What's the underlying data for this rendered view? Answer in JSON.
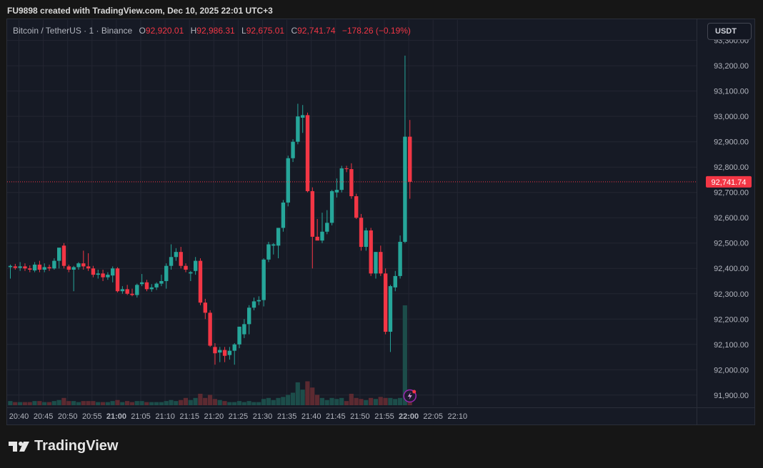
{
  "header": {
    "created_by": "FU9898 created with TradingView.com, Dec 10, 2025 22:01 UTC+3"
  },
  "legend": {
    "symbol": "Bitcoin / TetherUS · 1 · Binance",
    "open_label": "O",
    "open": "92,920.01",
    "high_label": "H",
    "high": "92,986.31",
    "low_label": "L",
    "low": "92,675.01",
    "close_label": "C",
    "close": "92,741.74",
    "change": "−178.26 (−0.19%)"
  },
  "currency_button": "USDT",
  "brand": {
    "name": "TradingView",
    "icon": "tradingview-logo-icon"
  },
  "colors": {
    "up": "#26a69a",
    "down": "#f23645",
    "up_volume": "#1c4d4a",
    "down_volume": "#5c2a31",
    "background": "#161a25",
    "grid": "#232632"
  },
  "chart_data": {
    "type": "candlestick",
    "y_ticks": [
      "91,900.00",
      "92,000.00",
      "92,100.00",
      "92,200.00",
      "92,300.00",
      "92,400.00",
      "92,500.00",
      "92,600.00",
      "92,700.00",
      "92,800.00",
      "92,900.00",
      "93,000.00",
      "93,100.00",
      "93,200.00",
      "93,300.00"
    ],
    "ylim": [
      91860,
      93330
    ],
    "x_ticks": [
      {
        "label": "20:40",
        "bold": false
      },
      {
        "label": "20:45",
        "bold": false
      },
      {
        "label": "20:50",
        "bold": false
      },
      {
        "label": "20:55",
        "bold": false
      },
      {
        "label": "21:00",
        "bold": true
      },
      {
        "label": "21:05",
        "bold": false
      },
      {
        "label": "21:10",
        "bold": false
      },
      {
        "label": "21:15",
        "bold": false
      },
      {
        "label": "21:20",
        "bold": false
      },
      {
        "label": "21:25",
        "bold": false
      },
      {
        "label": "21:30",
        "bold": false
      },
      {
        "label": "21:35",
        "bold": false
      },
      {
        "label": "21:40",
        "bold": false
      },
      {
        "label": "21:45",
        "bold": false
      },
      {
        "label": "21:50",
        "bold": false
      },
      {
        "label": "21:55",
        "bold": false
      },
      {
        "label": "22:00",
        "bold": true
      },
      {
        "label": "22:05",
        "bold": false
      },
      {
        "label": "22:10",
        "bold": false
      }
    ],
    "last_price": 92741.74,
    "last_price_label": "92,741.74",
    "candles": [
      {
        "o": 92405,
        "h": 92415,
        "l": 92360,
        "c": 92410,
        "v": 4
      },
      {
        "o": 92408,
        "h": 92418,
        "l": 92395,
        "c": 92402,
        "v": 3
      },
      {
        "o": 92402,
        "h": 92425,
        "l": 92390,
        "c": 92408,
        "v": 3
      },
      {
        "o": 92408,
        "h": 92420,
        "l": 92390,
        "c": 92400,
        "v": 3
      },
      {
        "o": 92400,
        "h": 92412,
        "l": 92385,
        "c": 92395,
        "v": 3
      },
      {
        "o": 92392,
        "h": 92425,
        "l": 92385,
        "c": 92415,
        "v": 4
      },
      {
        "o": 92415,
        "h": 92430,
        "l": 92385,
        "c": 92395,
        "v": 4
      },
      {
        "o": 92395,
        "h": 92420,
        "l": 92385,
        "c": 92405,
        "v": 3
      },
      {
        "o": 92405,
        "h": 92415,
        "l": 92390,
        "c": 92400,
        "v": 3
      },
      {
        "o": 92400,
        "h": 92440,
        "l": 92395,
        "c": 92430,
        "v": 4
      },
      {
        "o": 92430,
        "h": 92480,
        "l": 92400,
        "c": 92482,
        "v": 5
      },
      {
        "o": 92490,
        "h": 92500,
        "l": 92400,
        "c": 92410,
        "v": 7
      },
      {
        "o": 92408,
        "h": 92415,
        "l": 92385,
        "c": 92395,
        "v": 4
      },
      {
        "o": 92395,
        "h": 92410,
        "l": 92310,
        "c": 92405,
        "v": 4
      },
      {
        "o": 92405,
        "h": 92425,
        "l": 92395,
        "c": 92420,
        "v": 3
      },
      {
        "o": 92420,
        "h": 92470,
        "l": 92395,
        "c": 92408,
        "v": 4
      },
      {
        "o": 92408,
        "h": 92460,
        "l": 92390,
        "c": 92400,
        "v": 4
      },
      {
        "o": 92400,
        "h": 92410,
        "l": 92365,
        "c": 92375,
        "v": 4
      },
      {
        "o": 92375,
        "h": 92395,
        "l": 92360,
        "c": 92380,
        "v": 3
      },
      {
        "o": 92380,
        "h": 92395,
        "l": 92350,
        "c": 92365,
        "v": 3
      },
      {
        "o": 92365,
        "h": 92385,
        "l": 92355,
        "c": 92375,
        "v": 3
      },
      {
        "o": 92372,
        "h": 92408,
        "l": 92345,
        "c": 92400,
        "v": 4
      },
      {
        "o": 92400,
        "h": 92405,
        "l": 92305,
        "c": 92310,
        "v": 5
      },
      {
        "o": 92310,
        "h": 92330,
        "l": 92300,
        "c": 92318,
        "v": 3
      },
      {
        "o": 92318,
        "h": 92335,
        "l": 92295,
        "c": 92300,
        "v": 4
      },
      {
        "o": 92300,
        "h": 92320,
        "l": 92290,
        "c": 92295,
        "v": 3
      },
      {
        "o": 92295,
        "h": 92340,
        "l": 92285,
        "c": 92335,
        "v": 4
      },
      {
        "o": 92338,
        "h": 92378,
        "l": 92330,
        "c": 92345,
        "v": 4
      },
      {
        "o": 92345,
        "h": 92355,
        "l": 92310,
        "c": 92318,
        "v": 3
      },
      {
        "o": 92318,
        "h": 92338,
        "l": 92308,
        "c": 92325,
        "v": 3
      },
      {
        "o": 92325,
        "h": 92345,
        "l": 92315,
        "c": 92340,
        "v": 3
      },
      {
        "o": 92340,
        "h": 92375,
        "l": 92330,
        "c": 92350,
        "v": 3
      },
      {
        "o": 92350,
        "h": 92420,
        "l": 92320,
        "c": 92410,
        "v": 4
      },
      {
        "o": 92410,
        "h": 92495,
        "l": 92395,
        "c": 92445,
        "v": 5
      },
      {
        "o": 92445,
        "h": 92480,
        "l": 92430,
        "c": 92465,
        "v": 4
      },
      {
        "o": 92465,
        "h": 92485,
        "l": 92400,
        "c": 92410,
        "v": 5
      },
      {
        "o": 92410,
        "h": 92420,
        "l": 92385,
        "c": 92395,
        "v": 7
      },
      {
        "o": 92380,
        "h": 92390,
        "l": 92350,
        "c": 92385,
        "v": 5
      },
      {
        "o": 92390,
        "h": 92445,
        "l": 92375,
        "c": 92430,
        "v": 7
      },
      {
        "o": 92430,
        "h": 92440,
        "l": 92255,
        "c": 92265,
        "v": 11
      },
      {
        "o": 92265,
        "h": 92280,
        "l": 92200,
        "c": 92225,
        "v": 7
      },
      {
        "o": 92225,
        "h": 92235,
        "l": 92090,
        "c": 92095,
        "v": 10
      },
      {
        "o": 92090,
        "h": 92105,
        "l": 92020,
        "c": 92065,
        "v": 6
      },
      {
        "o": 92068,
        "h": 92090,
        "l": 92030,
        "c": 92078,
        "v": 5
      },
      {
        "o": 92078,
        "h": 92090,
        "l": 92030,
        "c": 92055,
        "v": 4
      },
      {
        "o": 92058,
        "h": 92090,
        "l": 92040,
        "c": 92075,
        "v": 3
      },
      {
        "o": 92075,
        "h": 92105,
        "l": 92020,
        "c": 92100,
        "v": 3
      },
      {
        "o": 92100,
        "h": 92170,
        "l": 92085,
        "c": 92170,
        "v": 4
      },
      {
        "o": 92140,
        "h": 92200,
        "l": 92125,
        "c": 92180,
        "v": 3
      },
      {
        "o": 92180,
        "h": 92255,
        "l": 92140,
        "c": 92245,
        "v": 4
      },
      {
        "o": 92245,
        "h": 92285,
        "l": 92235,
        "c": 92270,
        "v": 3
      },
      {
        "o": 92270,
        "h": 92290,
        "l": 92255,
        "c": 92275,
        "v": 3
      },
      {
        "o": 92275,
        "h": 92440,
        "l": 92250,
        "c": 92435,
        "v": 6
      },
      {
        "o": 92435,
        "h": 92505,
        "l": 92425,
        "c": 92495,
        "v": 7
      },
      {
        "o": 92490,
        "h": 92500,
        "l": 92455,
        "c": 92495,
        "v": 5
      },
      {
        "o": 92490,
        "h": 92560,
        "l": 92440,
        "c": 92560,
        "v": 7
      },
      {
        "o": 92560,
        "h": 92670,
        "l": 92545,
        "c": 92660,
        "v": 8
      },
      {
        "o": 92660,
        "h": 92845,
        "l": 92645,
        "c": 92835,
        "v": 10
      },
      {
        "o": 92835,
        "h": 92910,
        "l": 92820,
        "c": 92900,
        "v": 12
      },
      {
        "o": 92900,
        "h": 93050,
        "l": 92890,
        "c": 93000,
        "v": 22
      },
      {
        "o": 92995,
        "h": 93045,
        "l": 92935,
        "c": 93005,
        "v": 15
      },
      {
        "o": 93005,
        "h": 93015,
        "l": 92700,
        "c": 92705,
        "v": 23
      },
      {
        "o": 92705,
        "h": 92720,
        "l": 92400,
        "c": 92525,
        "v": 17
      },
      {
        "o": 92525,
        "h": 92595,
        "l": 92515,
        "c": 92510,
        "v": 10
      },
      {
        "o": 92510,
        "h": 92620,
        "l": 92500,
        "c": 92545,
        "v": 7
      },
      {
        "o": 92545,
        "h": 92630,
        "l": 92535,
        "c": 92580,
        "v": 5
      },
      {
        "o": 92580,
        "h": 92710,
        "l": 92570,
        "c": 92705,
        "v": 7
      },
      {
        "o": 92700,
        "h": 92755,
        "l": 92680,
        "c": 92710,
        "v": 6
      },
      {
        "o": 92710,
        "h": 92805,
        "l": 92700,
        "c": 92795,
        "v": 7
      },
      {
        "o": 92795,
        "h": 92805,
        "l": 92780,
        "c": 92792,
        "v": 4
      },
      {
        "o": 92792,
        "h": 92815,
        "l": 92675,
        "c": 92685,
        "v": 11
      },
      {
        "o": 92685,
        "h": 92695,
        "l": 92595,
        "c": 92600,
        "v": 7
      },
      {
        "o": 92600,
        "h": 92615,
        "l": 92470,
        "c": 92485,
        "v": 6
      },
      {
        "o": 92485,
        "h": 92560,
        "l": 92470,
        "c": 92550,
        "v": 5
      },
      {
        "o": 92550,
        "h": 92560,
        "l": 92370,
        "c": 92380,
        "v": 7
      },
      {
        "o": 92380,
        "h": 92465,
        "l": 92360,
        "c": 92465,
        "v": 6
      },
      {
        "o": 92465,
        "h": 92490,
        "l": 92370,
        "c": 92380,
        "v": 8
      },
      {
        "o": 92380,
        "h": 92400,
        "l": 92140,
        "c": 92150,
        "v": 7
      },
      {
        "o": 92150,
        "h": 92335,
        "l": 92070,
        "c": 92330,
        "v": 7
      },
      {
        "o": 92325,
        "h": 92390,
        "l": 92310,
        "c": 92370,
        "v": 6
      },
      {
        "o": 92370,
        "h": 92530,
        "l": 92360,
        "c": 92505,
        "v": 7
      },
      {
        "o": 92505,
        "h": 93240,
        "l": 92500,
        "c": 92920,
        "v": 96
      },
      {
        "o": 92920,
        "h": 92986,
        "l": 92675,
        "c": 92742,
        "v": 5
      }
    ]
  }
}
